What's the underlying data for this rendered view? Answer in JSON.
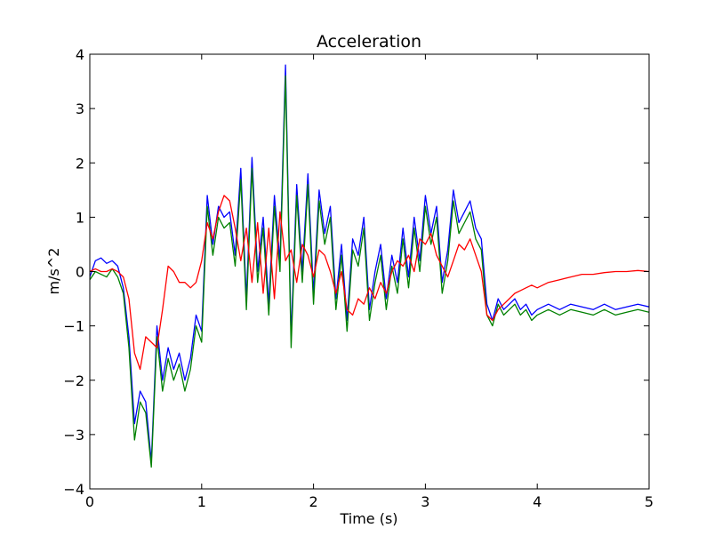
{
  "chart_data": {
    "type": "line",
    "title": "Acceleration",
    "xlabel": "Time (s)",
    "ylabel": "m/s^2",
    "xlim": [
      0,
      5
    ],
    "ylim": [
      -4,
      4
    ],
    "xticks": [
      "0",
      "1",
      "2",
      "3",
      "4",
      "5"
    ],
    "yticks": [
      "4",
      "3",
      "2",
      "1",
      "0",
      "−1",
      "−2",
      "−3",
      "−4"
    ],
    "grid": false,
    "legend": "none",
    "series": [
      {
        "color": "#0000ff",
        "x": [
          0.0,
          0.05,
          0.1,
          0.15,
          0.2,
          0.25,
          0.3,
          0.35,
          0.4,
          0.45,
          0.5,
          0.55,
          0.6,
          0.65,
          0.7,
          0.75,
          0.8,
          0.85,
          0.9,
          0.95,
          1.0,
          1.05,
          1.1,
          1.15,
          1.2,
          1.25,
          1.3,
          1.35,
          1.4,
          1.45,
          1.5,
          1.55,
          1.6,
          1.65,
          1.7,
          1.75,
          1.8,
          1.85,
          1.9,
          1.95,
          2.0,
          2.05,
          2.1,
          2.15,
          2.2,
          2.25,
          2.3,
          2.35,
          2.4,
          2.45,
          2.5,
          2.55,
          2.6,
          2.65,
          2.7,
          2.75,
          2.8,
          2.85,
          2.9,
          2.95,
          3.0,
          3.05,
          3.1,
          3.15,
          3.2,
          3.25,
          3.3,
          3.35,
          3.4,
          3.45,
          3.5,
          3.55,
          3.6,
          3.65,
          3.7,
          3.75,
          3.8,
          3.85,
          3.9,
          3.95,
          4.0,
          4.1,
          4.2,
          4.3,
          4.4,
          4.5,
          4.6,
          4.7,
          4.8,
          4.9,
          5.0
        ],
        "y": [
          -0.1,
          0.2,
          0.25,
          0.15,
          0.2,
          0.1,
          -0.3,
          -1.2,
          -2.8,
          -2.2,
          -2.4,
          -3.5,
          -1.0,
          -2.0,
          -1.4,
          -1.8,
          -1.5,
          -2.0,
          -1.6,
          -0.8,
          -1.1,
          1.4,
          0.5,
          1.2,
          1.0,
          1.1,
          0.3,
          1.9,
          -0.5,
          2.1,
          0.0,
          1.0,
          -0.6,
          1.4,
          0.2,
          3.8,
          -1.2,
          1.6,
          0.0,
          1.8,
          -0.4,
          1.5,
          0.7,
          1.2,
          -0.5,
          0.5,
          -0.9,
          0.6,
          0.3,
          1.0,
          -0.7,
          0.0,
          0.5,
          -0.5,
          0.3,
          -0.2,
          0.8,
          -0.1,
          1.0,
          0.2,
          1.4,
          0.7,
          1.2,
          -0.2,
          0.4,
          1.5,
          0.9,
          1.1,
          1.3,
          0.8,
          0.6,
          -0.6,
          -0.9,
          -0.5,
          -0.7,
          -0.6,
          -0.5,
          -0.7,
          -0.6,
          -0.8,
          -0.7,
          -0.6,
          -0.7,
          -0.6,
          -0.65,
          -0.7,
          -0.6,
          -0.7,
          -0.65,
          -0.6,
          -0.65
        ]
      },
      {
        "color": "#008000",
        "x": [
          0.0,
          0.05,
          0.1,
          0.15,
          0.2,
          0.25,
          0.3,
          0.35,
          0.4,
          0.45,
          0.5,
          0.55,
          0.6,
          0.65,
          0.7,
          0.75,
          0.8,
          0.85,
          0.9,
          0.95,
          1.0,
          1.05,
          1.1,
          1.15,
          1.2,
          1.25,
          1.3,
          1.35,
          1.4,
          1.45,
          1.5,
          1.55,
          1.6,
          1.65,
          1.7,
          1.75,
          1.8,
          1.85,
          1.9,
          1.95,
          2.0,
          2.05,
          2.1,
          2.15,
          2.2,
          2.25,
          2.3,
          2.35,
          2.4,
          2.45,
          2.5,
          2.55,
          2.6,
          2.65,
          2.7,
          2.75,
          2.8,
          2.85,
          2.9,
          2.95,
          3.0,
          3.05,
          3.1,
          3.15,
          3.2,
          3.25,
          3.3,
          3.35,
          3.4,
          3.45,
          3.5,
          3.55,
          3.6,
          3.65,
          3.7,
          3.75,
          3.8,
          3.85,
          3.9,
          3.95,
          4.0,
          4.1,
          4.2,
          4.3,
          4.4,
          4.5,
          4.6,
          4.7,
          4.8,
          4.9,
          5.0
        ],
        "y": [
          -0.15,
          0.0,
          -0.05,
          -0.1,
          0.05,
          -0.1,
          -0.4,
          -1.4,
          -3.1,
          -2.4,
          -2.6,
          -3.6,
          -1.2,
          -2.2,
          -1.6,
          -2.0,
          -1.7,
          -2.2,
          -1.8,
          -1.0,
          -1.3,
          1.2,
          0.3,
          1.0,
          0.8,
          0.9,
          0.1,
          1.7,
          -0.7,
          1.9,
          -0.2,
          0.8,
          -0.8,
          1.2,
          0.0,
          3.6,
          -1.4,
          1.4,
          -0.2,
          1.6,
          -0.6,
          1.3,
          0.5,
          1.0,
          -0.7,
          0.3,
          -1.1,
          0.4,
          0.1,
          0.8,
          -0.9,
          -0.2,
          0.3,
          -0.7,
          0.1,
          -0.4,
          0.6,
          -0.3,
          0.8,
          0.0,
          1.2,
          0.5,
          1.0,
          -0.4,
          0.2,
          1.3,
          0.7,
          0.9,
          1.1,
          0.6,
          0.4,
          -0.8,
          -1.0,
          -0.6,
          -0.8,
          -0.7,
          -0.6,
          -0.8,
          -0.7,
          -0.9,
          -0.8,
          -0.7,
          -0.8,
          -0.7,
          -0.75,
          -0.8,
          -0.7,
          -0.8,
          -0.75,
          -0.7,
          -0.75
        ]
      },
      {
        "color": "#ff0000",
        "x": [
          0.0,
          0.05,
          0.1,
          0.15,
          0.2,
          0.25,
          0.3,
          0.35,
          0.4,
          0.45,
          0.5,
          0.55,
          0.6,
          0.65,
          0.7,
          0.75,
          0.8,
          0.85,
          0.9,
          0.95,
          1.0,
          1.05,
          1.1,
          1.15,
          1.2,
          1.25,
          1.3,
          1.35,
          1.4,
          1.45,
          1.5,
          1.55,
          1.6,
          1.65,
          1.7,
          1.75,
          1.8,
          1.85,
          1.9,
          1.95,
          2.0,
          2.05,
          2.1,
          2.15,
          2.2,
          2.25,
          2.3,
          2.35,
          2.4,
          2.45,
          2.5,
          2.55,
          2.6,
          2.65,
          2.7,
          2.75,
          2.8,
          2.85,
          2.9,
          2.95,
          3.0,
          3.05,
          3.1,
          3.15,
          3.2,
          3.25,
          3.3,
          3.35,
          3.4,
          3.45,
          3.5,
          3.55,
          3.6,
          3.65,
          3.7,
          3.75,
          3.8,
          3.85,
          3.9,
          3.95,
          4.0,
          4.1,
          4.2,
          4.3,
          4.4,
          4.5,
          4.6,
          4.7,
          4.8,
          4.9,
          5.0
        ],
        "y": [
          0.0,
          0.05,
          0.0,
          0.0,
          0.05,
          0.0,
          -0.1,
          -0.5,
          -1.5,
          -1.8,
          -1.2,
          -1.3,
          -1.4,
          -0.7,
          0.1,
          0.0,
          -0.2,
          -0.2,
          -0.3,
          -0.2,
          0.2,
          0.9,
          0.6,
          1.1,
          1.4,
          1.3,
          0.8,
          0.2,
          0.8,
          -0.2,
          0.9,
          -0.4,
          0.8,
          -0.5,
          1.1,
          0.2,
          0.4,
          -0.2,
          0.5,
          0.3,
          -0.1,
          0.4,
          0.3,
          0.0,
          -0.4,
          0.0,
          -0.7,
          -0.8,
          -0.5,
          -0.6,
          -0.3,
          -0.5,
          -0.2,
          -0.4,
          0.0,
          0.2,
          0.1,
          0.3,
          0.0,
          0.6,
          0.5,
          0.7,
          0.3,
          0.1,
          -0.1,
          0.2,
          0.5,
          0.4,
          0.6,
          0.3,
          0.0,
          -0.8,
          -0.9,
          -0.7,
          -0.6,
          -0.5,
          -0.4,
          -0.35,
          -0.3,
          -0.25,
          -0.3,
          -0.2,
          -0.15,
          -0.1,
          -0.05,
          -0.05,
          -0.02,
          0.0,
          0.0,
          0.02,
          0.0
        ]
      }
    ]
  }
}
